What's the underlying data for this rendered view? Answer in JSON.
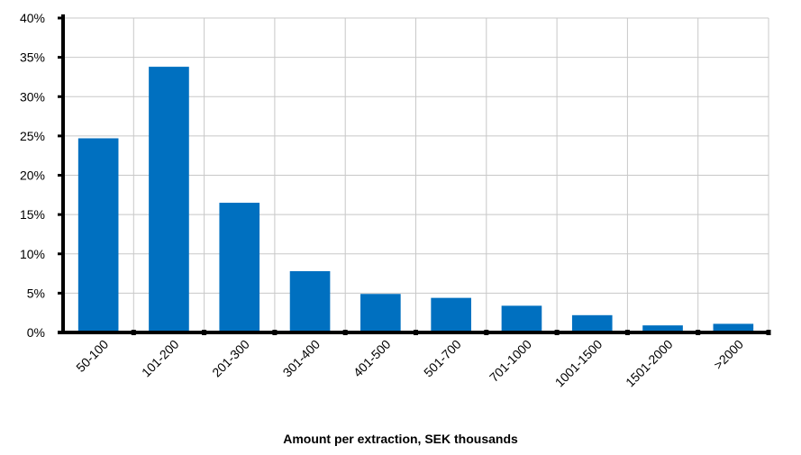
{
  "chart_data": {
    "type": "bar",
    "title": "",
    "xlabel": "Amount per extraction, SEK thousands",
    "ylabel": "",
    "categories": [
      "50-100",
      "101-200",
      "201-300",
      "301-400",
      "401-500",
      "501-700",
      "701-1000",
      "1001-1500",
      "1501-2000",
      ">2000"
    ],
    "values": [
      24.7,
      33.8,
      16.5,
      7.8,
      4.9,
      4.4,
      3.4,
      2.2,
      0.9,
      1.1
    ],
    "ylim": [
      0,
      40
    ],
    "yticks": [
      0,
      5,
      10,
      15,
      20,
      25,
      30,
      35,
      40
    ],
    "ytick_format": "percent",
    "grid": true,
    "legend": "none",
    "colors": {
      "bar": "#0070C0",
      "grid": "#C8C8C8",
      "axis": "#000000"
    }
  }
}
